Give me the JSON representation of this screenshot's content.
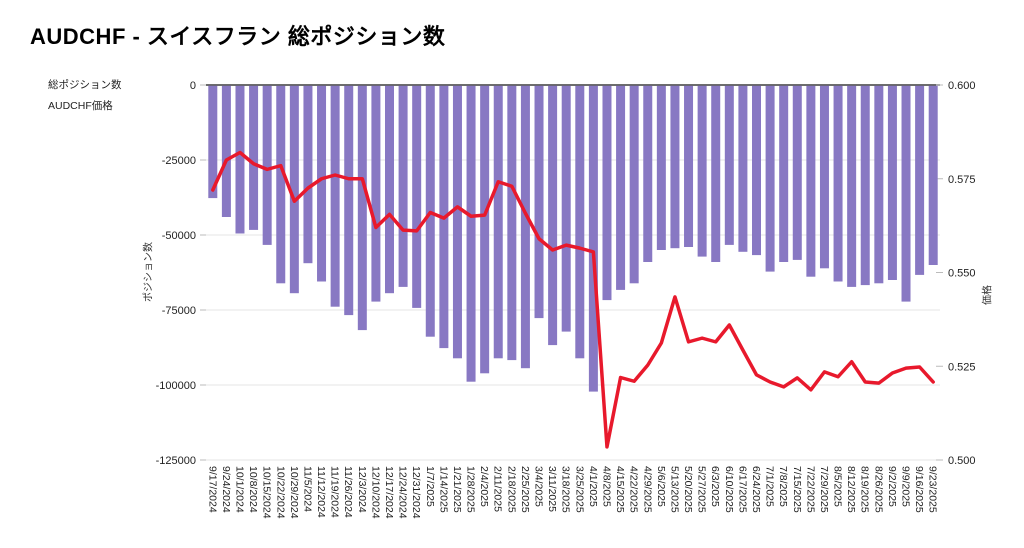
{
  "page": {
    "title": "AUDCHF - スイスフラン 総ポジション数"
  },
  "legend": {
    "bar_item": "総ポジション数",
    "line_item": "AUDCHF価格"
  },
  "colors": {
    "bar": "#8878C3",
    "line": "#E8192C",
    "grid": "#E4E4E4",
    "zero_line": "#3D3D3D",
    "tick": "#BBBBBB",
    "tick_text": "#222222",
    "background": "#FFFFFF"
  },
  "chart_data": {
    "type": "bar",
    "title": "AUDCHF - スイスフラン 総ポジション数",
    "grid": true,
    "legend_position": "top-left",
    "categories": [
      "9/17/2024",
      "9/24/2024",
      "10/1/2024",
      "10/8/2024",
      "10/15/2024",
      "10/22/2024",
      "10/29/2024",
      "11/5/2024",
      "11/12/2024",
      "11/19/2024",
      "11/26/2024",
      "12/3/2024",
      "12/10/2024",
      "12/17/2024",
      "12/24/2024",
      "12/31/2024",
      "1/7/2025",
      "1/14/2025",
      "1/21/2025",
      "1/28/2025",
      "2/4/2025",
      "2/11/2025",
      "2/18/2025",
      "2/25/2025",
      "3/4/2025",
      "3/11/2025",
      "3/18/2025",
      "3/25/2025",
      "4/1/2025",
      "4/8/2025",
      "4/15/2025",
      "4/22/2025",
      "4/29/2025",
      "5/6/2025",
      "5/13/2025",
      "5/20/2025",
      "5/27/2025",
      "6/3/2025",
      "6/10/2025",
      "6/17/2025",
      "6/24/2025",
      "7/1/2025",
      "7/8/2025",
      "7/15/2025",
      "7/22/2025",
      "7/29/2025",
      "8/5/2025",
      "8/12/2025",
      "8/19/2025",
      "8/26/2025",
      "9/2/2025",
      "9/9/2025",
      "9/16/2025",
      "9/23/2025"
    ],
    "series": [
      {
        "name": "総ポジション数",
        "type": "bar",
        "axis": "left",
        "color": "#8878C3",
        "values": [
          -37700,
          -44000,
          -49500,
          -48300,
          -53300,
          -66100,
          -69400,
          -59400,
          -65500,
          -73900,
          -76700,
          -81700,
          -72200,
          -69400,
          -67300,
          -74300,
          -83900,
          -87700,
          -91100,
          -98900,
          -96100,
          -91100,
          -91700,
          -94400,
          -77700,
          -86700,
          -82200,
          -91100,
          -102200,
          -71700,
          -68300,
          -66100,
          -59000,
          -55000,
          -54400,
          -54000,
          -57200,
          -59000,
          -53300,
          -55600,
          -56700,
          -62200,
          -59000,
          -58300,
          -63900,
          -61100,
          -65500,
          -67300,
          -66700,
          -66100,
          -65000,
          -72200,
          -63300,
          -60000
        ]
      },
      {
        "name": "AUDCHF価格",
        "type": "line",
        "axis": "right",
        "color": "#E8192C",
        "values": [
          0.572,
          0.58,
          0.582,
          0.579,
          0.5775,
          0.5785,
          0.569,
          0.5725,
          0.575,
          0.576,
          0.575,
          0.575,
          0.562,
          0.5655,
          0.5613,
          0.5611,
          0.566,
          0.5645,
          0.5675,
          0.565,
          0.5653,
          0.5742,
          0.573,
          0.5658,
          0.559,
          0.556,
          0.5573,
          0.5565,
          0.5555,
          0.5035,
          0.522,
          0.521,
          0.5253,
          0.5312,
          0.5435,
          0.5315,
          0.5325,
          0.5315,
          0.536,
          0.5293,
          0.5227,
          0.5208,
          0.5195,
          0.5219,
          0.5187,
          0.5235,
          0.5222,
          0.5262,
          0.5208,
          0.5205,
          0.5232,
          0.5245,
          0.5248,
          0.5208
        ]
      }
    ],
    "left_axis": {
      "label": "ポジション数",
      "min": -125000,
      "max": 0,
      "ticks": [
        "0",
        "-25000",
        "-50000",
        "-75000",
        "-100000",
        "-125000"
      ]
    },
    "right_axis": {
      "label": "価格",
      "min": 0.5,
      "max": 0.6,
      "ticks": [
        "0.600",
        "0.575",
        "0.550",
        "0.525",
        "0.500"
      ]
    }
  }
}
